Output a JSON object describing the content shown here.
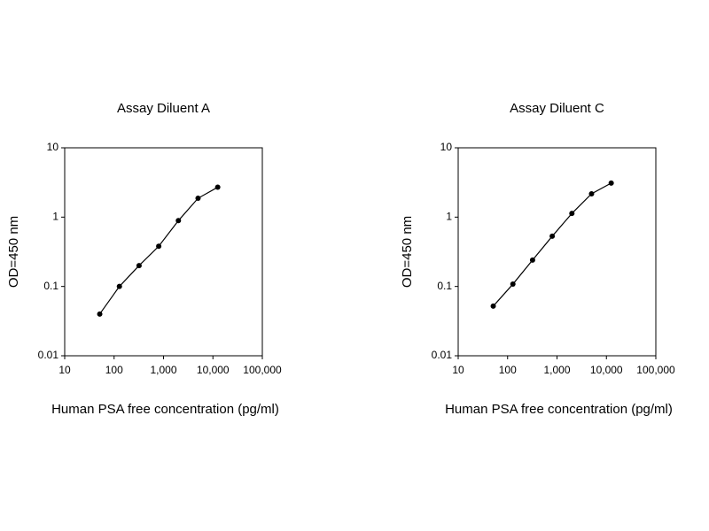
{
  "chart_data": [
    {
      "type": "line",
      "title": "Assay Diluent A",
      "x_label": "Human PSA free concentration (pg/ml)",
      "y_label": "OD=450 nm",
      "x": [
        51.2,
        128,
        320,
        800,
        2000,
        5000,
        12500
      ],
      "values": [
        0.04,
        0.1,
        0.2,
        0.38,
        0.89,
        1.87,
        2.7
      ],
      "color": "#000000",
      "xscale": "log",
      "yscale": "log",
      "xlim": [
        10,
        100000
      ],
      "ylim": [
        0.01,
        10
      ],
      "xticks": [
        10,
        100,
        {
          "value": 1000,
          "label": "1,000"
        },
        {
          "value": 10000,
          "label": "10,000"
        },
        {
          "value": 100000,
          "label": "100,000"
        }
      ],
      "yticks": [
        0.01,
        0.1,
        1,
        10
      ]
    },
    {
      "type": "line",
      "title": "Assay Diluent C",
      "x_label": "Human PSA free concentration (pg/ml)",
      "y_label": "OD=450 nm",
      "x": [
        51.2,
        128,
        320,
        800,
        2000,
        5000,
        12500
      ],
      "values": [
        0.052,
        0.108,
        0.24,
        0.53,
        1.13,
        2.17,
        3.1
      ],
      "color": "#000000",
      "xscale": "log",
      "yscale": "log",
      "xlim": [
        10,
        100000
      ],
      "ylim": [
        0.01,
        10
      ],
      "xticks": [
        10,
        100,
        {
          "value": 1000,
          "label": "1,000"
        },
        {
          "value": 10000,
          "label": "10,000"
        },
        {
          "value": 100000,
          "label": "100,000"
        }
      ],
      "yticks": [
        0.01,
        0.1,
        1,
        10
      ]
    }
  ]
}
